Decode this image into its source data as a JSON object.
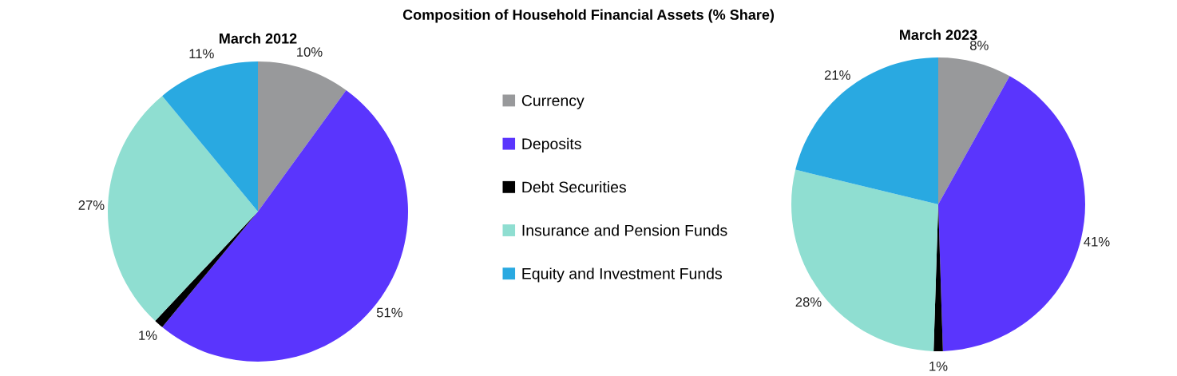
{
  "chart_data": [
    {
      "type": "pie",
      "title": "Composition of Household Financial Assets (% Share)",
      "subtitle": "March 2012",
      "categories": [
        "Currency",
        "Deposits",
        "Debt Securities",
        "Insurance and Pension Funds",
        "Equity and Investment Funds"
      ],
      "values": [
        10,
        51,
        1,
        27,
        11
      ],
      "value_labels": [
        "10%",
        "51%",
        "1%",
        "27%",
        "11%"
      ],
      "colors": [
        "#98999b",
        "#5a35fd",
        "#000000",
        "#8fded1",
        "#29a9e1"
      ],
      "legend": "right"
    },
    {
      "type": "pie",
      "subtitle": "March 2023",
      "categories": [
        null,
        null,
        null,
        null,
        null
      ],
      "values": [
        8,
        41,
        1,
        28,
        21
      ],
      "value_labels": [
        "8%",
        "41%",
        "1%",
        "28%",
        "21%"
      ],
      "colors": [
        "#98999b",
        "#5a35fd",
        "#000000",
        "#8fded1",
        "#29a9e1"
      ]
    }
  ]
}
